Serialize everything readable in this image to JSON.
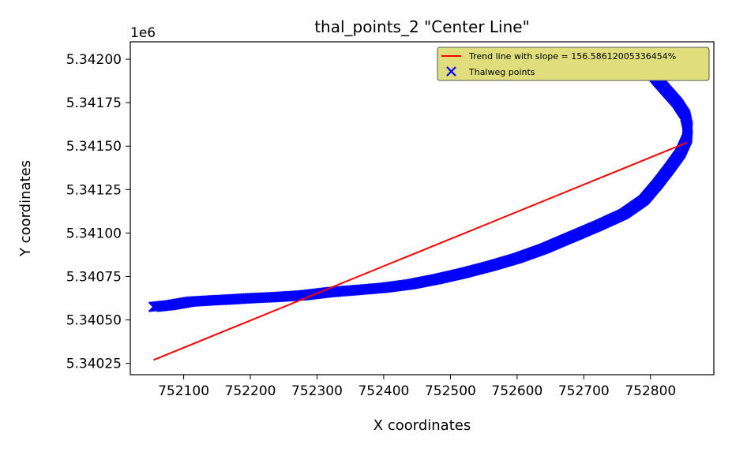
{
  "chart_data": {
    "type": "scatter",
    "title": "thal_points_2 \"Center Line\"",
    "xlabel": "X coordinates",
    "ylabel": "Y coordinates",
    "offset_text": "1e6",
    "xlim": [
      752020,
      752895
    ],
    "ylim": [
      5340185,
      5342100
    ],
    "grid": false,
    "legend_position": "top-right",
    "legend_facecolor": "#e0dd7c",
    "xticks": [
      752100,
      752200,
      752300,
      752400,
      752500,
      752600,
      752700,
      752800
    ],
    "xtick_labels": [
      "752100",
      "752200",
      "752300",
      "752400",
      "752500",
      "752600",
      "752700",
      "752800"
    ],
    "yticks": [
      5340250,
      5340500,
      5340750,
      5341000,
      5341250,
      5341500,
      5341750,
      5342000
    ],
    "ytick_labels": [
      "5.34025",
      "5.34050",
      "5.34075",
      "5.34100",
      "5.34125",
      "5.34150",
      "5.34175",
      "5.34200"
    ],
    "series": [
      {
        "name": "Trend line with slope = 156.58612005336454%",
        "kind": "line",
        "color": "#ff0000",
        "x": [
          752055,
          752855
        ],
        "y": [
          5340270,
          5341521
        ]
      },
      {
        "name": "Thalweg points",
        "kind": "scatter",
        "marker": "x",
        "color": "#0000ff",
        "x": [
          752055,
          752080,
          752110,
          752140,
          752170,
          752200,
          752240,
          752280,
          752320,
          752360,
          752400,
          752440,
          752480,
          752520,
          752560,
          752600,
          752640,
          752680,
          752720,
          752760,
          752790,
          752810,
          752830,
          752845,
          752855,
          752856,
          752852,
          752840,
          752825,
          752810,
          752795,
          752785
        ],
        "y": [
          5340575,
          5340585,
          5340605,
          5340612,
          5340618,
          5340625,
          5340632,
          5340642,
          5340660,
          5340672,
          5340685,
          5340705,
          5340735,
          5340770,
          5340810,
          5340855,
          5340910,
          5340975,
          5341040,
          5341110,
          5341190,
          5341280,
          5341380,
          5341460,
          5341545,
          5341610,
          5341680,
          5341750,
          5341815,
          5341880,
          5341950,
          5342010
        ]
      }
    ]
  }
}
